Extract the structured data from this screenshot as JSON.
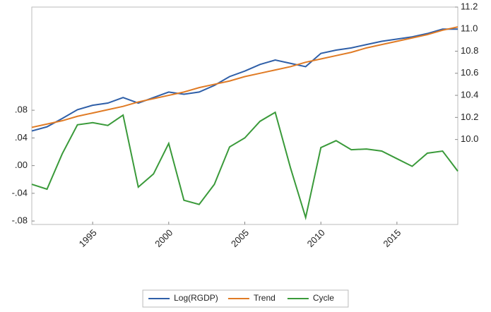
{
  "chart_data": {
    "type": "line",
    "x": [
      1991,
      1992,
      1993,
      1994,
      1995,
      1996,
      1997,
      1998,
      1999,
      2000,
      2001,
      2002,
      2003,
      2004,
      2005,
      2006,
      2007,
      2008,
      2009,
      2010,
      2011,
      2012,
      2013,
      2014,
      2015,
      2016,
      2017,
      2018,
      2019
    ],
    "xlim": [
      1991,
      2019
    ],
    "xticks": [
      1995,
      2000,
      2005,
      2010,
      2015
    ],
    "ylim": [
      -0.085,
      0.229
    ],
    "yticks": [
      {
        "value": -0.08,
        "label": "-.08"
      },
      {
        "value": -0.04,
        "label": "-.04"
      },
      {
        "value": 0,
        "label": ".00"
      },
      {
        "value": 0.04,
        "label": ".04"
      },
      {
        "value": 0.08,
        "label": ".08"
      }
    ],
    "y2lim": [
      9.23,
      11.2
    ],
    "y2ticks": [
      {
        "value": 10,
        "label": "10.0"
      },
      10.2,
      10.4,
      10.6,
      10.8,
      {
        "value": 11,
        "label": "11.0"
      },
      11.2
    ],
    "legend": "bottom",
    "series": [
      {
        "name": "Log(RGDP)",
        "color": "#2f5fa8",
        "axis": "y2",
        "values": [
          10.077,
          10.115,
          10.19,
          10.27,
          10.31,
          10.33,
          10.38,
          10.33,
          10.38,
          10.43,
          10.41,
          10.43,
          10.49,
          10.57,
          10.62,
          10.68,
          10.72,
          10.69,
          10.66,
          10.78,
          10.81,
          10.83,
          10.86,
          10.89,
          10.91,
          10.93,
          10.96,
          11.0,
          11.0
        ]
      },
      {
        "name": "Trend",
        "color": "#e07b25",
        "axis": "y2",
        "values": [
          10.11,
          10.14,
          10.17,
          10.21,
          10.24,
          10.27,
          10.3,
          10.34,
          10.37,
          10.4,
          10.43,
          10.47,
          10.5,
          10.53,
          10.57,
          10.6,
          10.63,
          10.66,
          10.7,
          10.73,
          10.76,
          10.79,
          10.83,
          10.86,
          10.89,
          10.92,
          10.95,
          10.99,
          11.02
        ]
      },
      {
        "name": "Cycle",
        "color": "#3a9a3a",
        "axis": "y",
        "values": [
          -0.027,
          -0.034,
          0.017,
          0.059,
          0.062,
          0.058,
          0.073,
          -0.031,
          -0.012,
          0.032,
          -0.05,
          -0.056,
          -0.027,
          0.027,
          0.04,
          0.064,
          0.077,
          -0.003,
          -0.075,
          0.026,
          0.036,
          0.023,
          0.024,
          0.021,
          0.01,
          -0.001,
          0.018,
          0.021,
          -0.008
        ]
      }
    ]
  }
}
